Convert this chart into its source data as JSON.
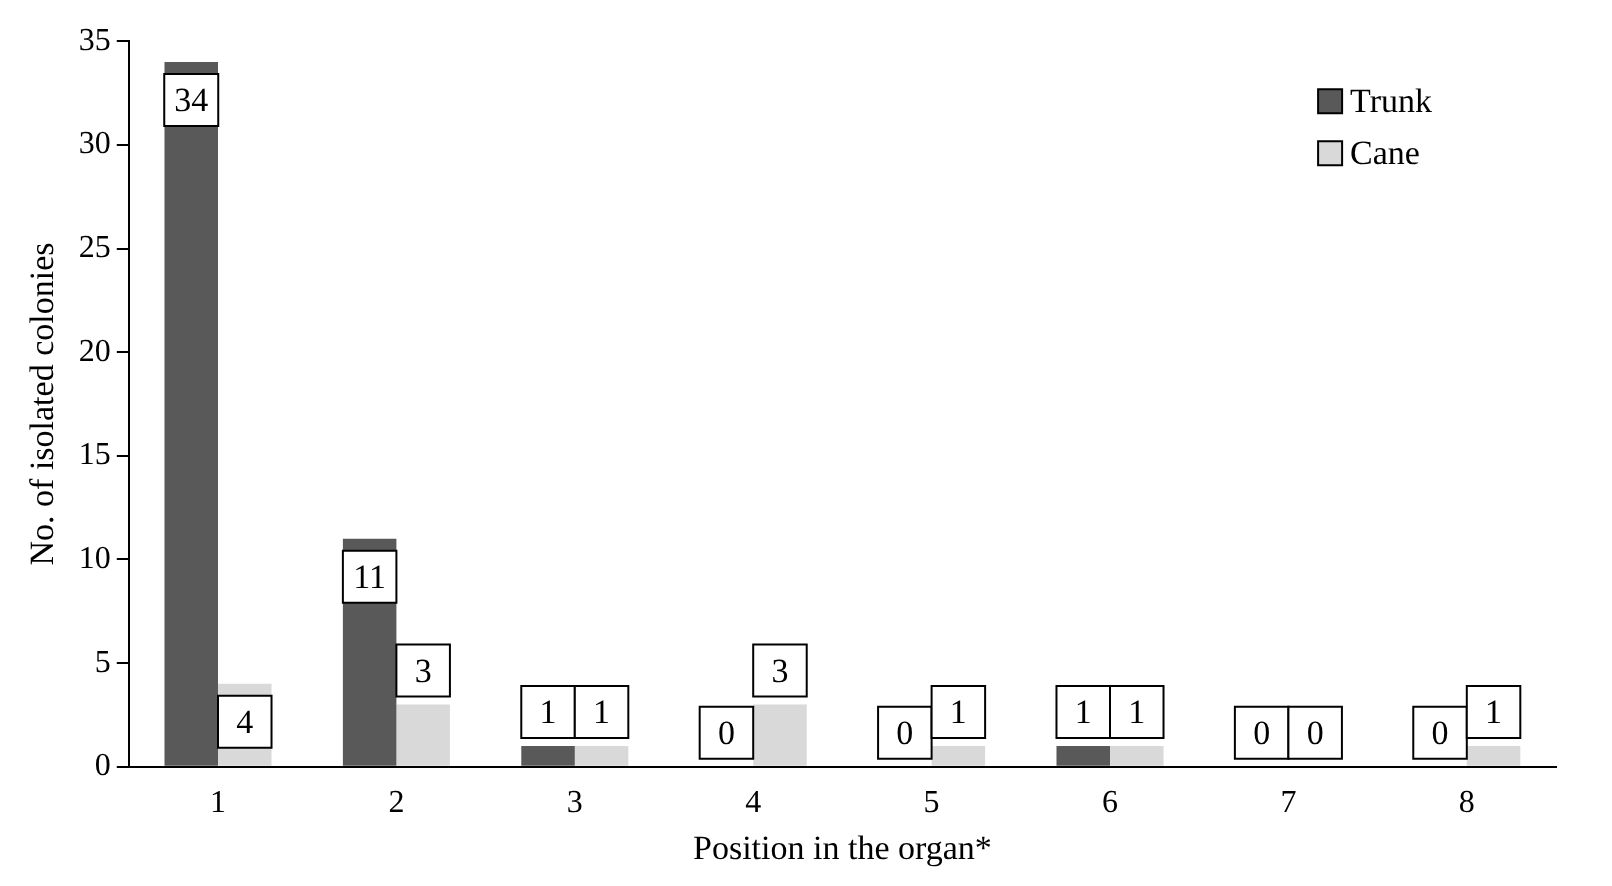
{
  "chart_data": {
    "type": "bar",
    "xlabel": "Position in the organ*",
    "ylabel": "No. of isolated colonies",
    "categories": [
      "1",
      "2",
      "3",
      "4",
      "5",
      "6",
      "7",
      "8"
    ],
    "series": [
      {
        "name": "Trunk",
        "color": "#595959",
        "values": [
          34,
          11,
          1,
          0,
          0,
          1,
          0,
          0
        ]
      },
      {
        "name": "Cane",
        "color": "#d9d9d9",
        "values": [
          4,
          3,
          1,
          3,
          1,
          1,
          0,
          1
        ]
      }
    ],
    "ylim": [
      0,
      35
    ],
    "yticks": [
      0,
      5,
      10,
      15,
      20,
      25,
      30,
      35
    ],
    "grid": false,
    "legend": "top right",
    "data_labels": true
  }
}
